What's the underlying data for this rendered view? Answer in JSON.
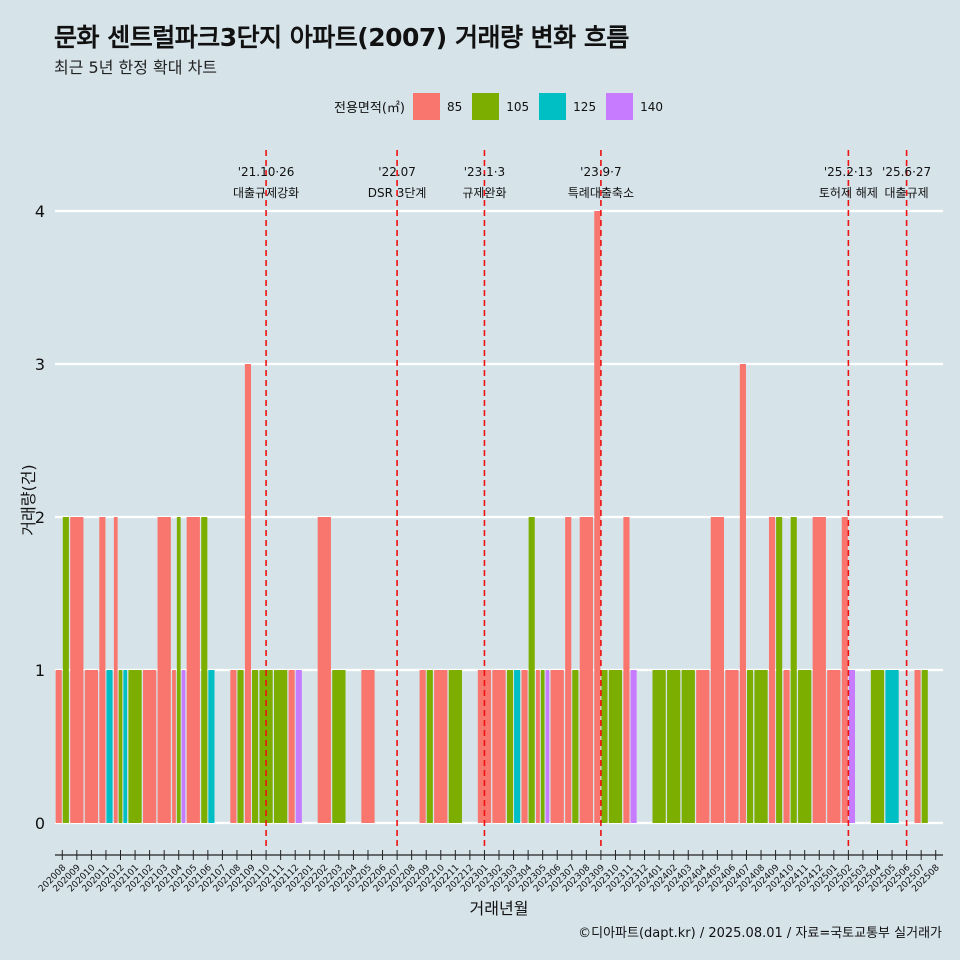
{
  "title": "문화 센트럴파크3단지 아파트(2007) 거래량 변화 흐름",
  "subtitle": "최근 5년 한정 확대 차트",
  "caption": "©디아파트(dapt.kr) / 2025.08.01 / 자료=국토교통부 실거래가",
  "legend": {
    "title": "전용면적(㎡)",
    "items": [
      {
        "label": "85",
        "color": "#f8766d"
      },
      {
        "label": "105",
        "color": "#7cae00"
      },
      {
        "label": "125",
        "color": "#00bfc4"
      },
      {
        "label": "140",
        "color": "#c77cff"
      }
    ]
  },
  "chart_data": {
    "type": "bar",
    "stacking": "dodge",
    "xlabel": "거래년월",
    "ylabel": "거래량(건)",
    "ylim": [
      0,
      4
    ],
    "yticks": [
      0,
      1,
      2,
      3,
      4
    ],
    "grid": "horizontal",
    "legend_position": "top",
    "categories": [
      "202008",
      "202009",
      "202010",
      "202011",
      "202012",
      "202101",
      "202102",
      "202103",
      "202104",
      "202105",
      "202106",
      "202107",
      "202108",
      "202109",
      "202110",
      "202111",
      "202112",
      "202201",
      "202202",
      "202203",
      "202204",
      "202205",
      "202206",
      "202207",
      "202208",
      "202209",
      "202210",
      "202211",
      "202212",
      "202301",
      "202302",
      "202303",
      "202304",
      "202305",
      "202306",
      "202307",
      "202308",
      "202309",
      "202310",
      "202311",
      "202312",
      "202401",
      "202402",
      "202403",
      "202404",
      "202405",
      "202406",
      "202407",
      "202408",
      "202409",
      "202410",
      "202411",
      "202412",
      "202501",
      "202502",
      "202503",
      "202504",
      "202505",
      "202506",
      "202507",
      "202508"
    ],
    "series": [
      {
        "name": "85",
        "color": "#f8766d",
        "values": [
          1,
          2,
          1,
          2,
          2,
          0,
          1,
          2,
          1,
          2,
          0,
          0,
          1,
          3,
          0,
          0,
          1,
          0,
          2,
          0,
          0,
          1,
          0,
          0,
          0,
          1,
          1,
          0,
          0,
          1,
          1,
          0,
          1,
          1,
          1,
          2,
          2,
          4,
          0,
          2,
          0,
          0,
          0,
          0,
          1,
          2,
          1,
          3,
          0,
          2,
          1,
          0,
          2,
          1,
          2,
          0,
          0,
          0,
          0,
          1,
          0
        ]
      },
      {
        "name": "105",
        "color": "#7cae00",
        "values": [
          2,
          0,
          0,
          0,
          1,
          1,
          0,
          0,
          2,
          0,
          2,
          0,
          1,
          1,
          1,
          1,
          0,
          0,
          0,
          1,
          0,
          0,
          0,
          0,
          0,
          1,
          0,
          1,
          0,
          0,
          0,
          1,
          2,
          1,
          0,
          1,
          0,
          1,
          1,
          0,
          0,
          1,
          1,
          1,
          0,
          0,
          0,
          1,
          1,
          2,
          2,
          1,
          0,
          0,
          0,
          0,
          1,
          0,
          0,
          1,
          0
        ]
      },
      {
        "name": "125",
        "color": "#00bfc4",
        "values": [
          0,
          0,
          0,
          1,
          1,
          0,
          0,
          0,
          0,
          0,
          1,
          0,
          0,
          0,
          0,
          0,
          0,
          0,
          0,
          0,
          0,
          0,
          0,
          0,
          0,
          0,
          0,
          0,
          0,
          0,
          0,
          1,
          0,
          0,
          0,
          0,
          0,
          0,
          0,
          0,
          0,
          0,
          0,
          0,
          0,
          0,
          0,
          0,
          0,
          0,
          0,
          0,
          0,
          0,
          0,
          0,
          0,
          1,
          0,
          0,
          0
        ]
      },
      {
        "name": "140",
        "color": "#c77cff",
        "values": [
          0,
          0,
          0,
          0,
          0,
          0,
          0,
          0,
          1,
          0,
          0,
          0,
          0,
          0,
          0,
          0,
          1,
          0,
          0,
          0,
          0,
          0,
          0,
          0,
          0,
          0,
          0,
          0,
          0,
          0,
          0,
          0,
          0,
          1,
          0,
          0,
          0,
          0,
          0,
          1,
          0,
          0,
          0,
          0,
          0,
          0,
          0,
          0,
          0,
          0,
          0,
          0,
          0,
          0,
          1,
          0,
          0,
          0,
          0,
          0,
          0
        ]
      }
    ],
    "annotations": [
      {
        "category": "202110",
        "date": "'21.10·26",
        "label": "대출규제강화"
      },
      {
        "category": "202207",
        "date": "'22.07",
        "label": "DSR 3단계"
      },
      {
        "category": "202301",
        "date": "'23.1·3",
        "label": "규제완화"
      },
      {
        "category": "202309",
        "date": "'23.9·7",
        "label": "특례대출축소"
      },
      {
        "category": "202502",
        "date": "'25.2·13",
        "label": "토허제 해제"
      },
      {
        "category": "202506",
        "date": "'25.6·27",
        "label": "대출규제"
      }
    ]
  }
}
